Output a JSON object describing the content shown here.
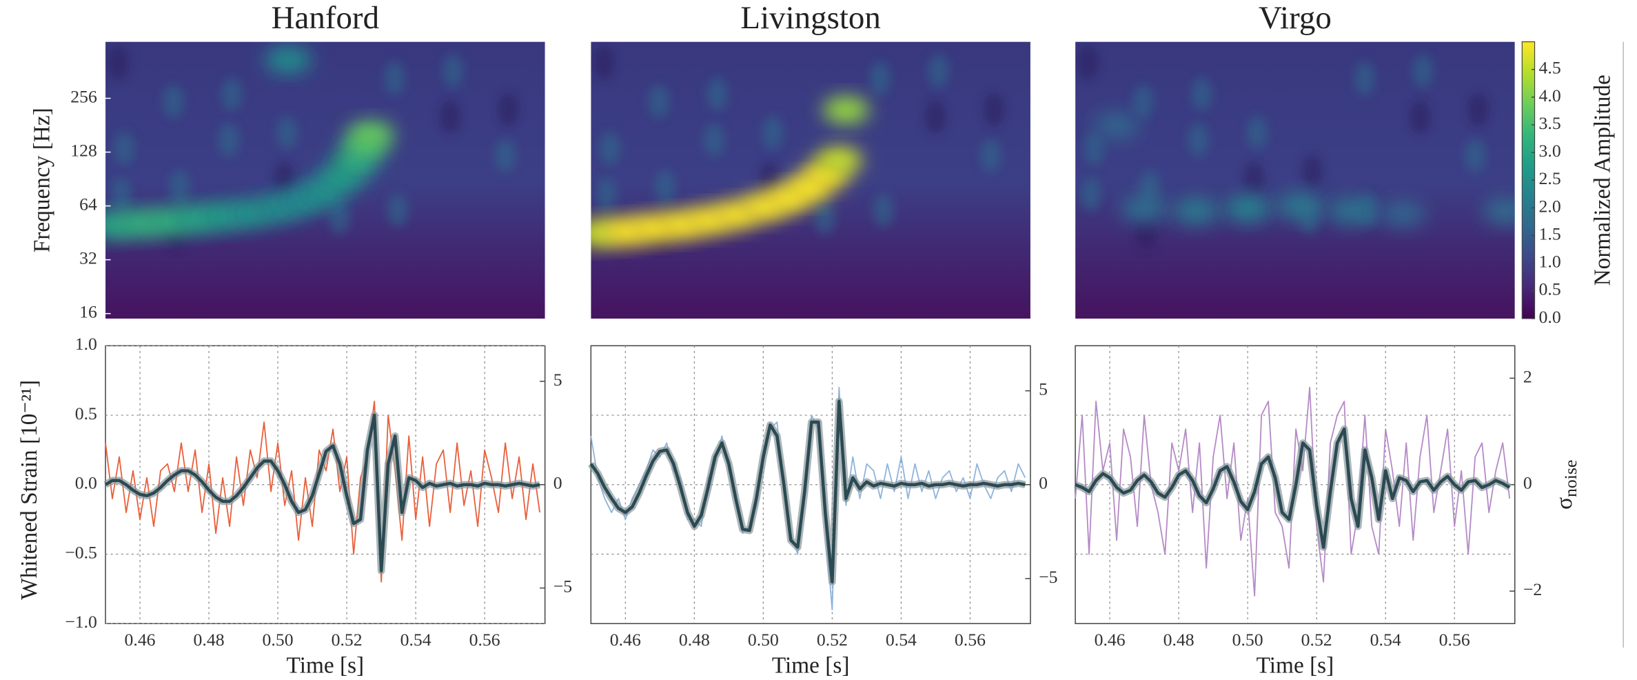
{
  "chart_data": [
    {
      "type": "heatmap",
      "title": "Hanford",
      "ylabel": "Frequency [Hz]",
      "log_y": true,
      "xlim": [
        0.45,
        0.5775
      ],
      "ylim": [
        15,
        530
      ],
      "yticks": [
        16,
        32,
        64,
        128,
        256
      ],
      "clim": [
        0,
        5
      ],
      "colormap": "viridis",
      "x": [
        0.452,
        0.46,
        0.468,
        0.476,
        0.484,
        0.492,
        0.5,
        0.507,
        0.513,
        0.518,
        0.522,
        0.525,
        0.527,
        0.503
      ],
      "y": [
        50,
        51,
        52,
        54,
        56,
        58,
        62,
        68,
        76,
        90,
        110,
        135,
        160,
        420
      ],
      "values": [
        3.0,
        3.2,
        3.2,
        3.0,
        2.8,
        2.6,
        2.5,
        2.4,
        2.5,
        2.7,
        3.0,
        3.4,
        3.8,
        2.4
      ]
    },
    {
      "type": "heatmap",
      "title": "Livingston",
      "log_y": true,
      "xlim": [
        0.45,
        0.5775
      ],
      "ylim": [
        15,
        530
      ],
      "clim": [
        0,
        5
      ],
      "colormap": "viridis",
      "x": [
        0.452,
        0.46,
        0.468,
        0.476,
        0.484,
        0.492,
        0.5,
        0.507,
        0.513,
        0.518,
        0.522,
        0.524
      ],
      "y": [
        45,
        46,
        48,
        50,
        53,
        57,
        63,
        70,
        80,
        95,
        115,
        220
      ],
      "values": [
        4.6,
        5.0,
        5.0,
        5.0,
        5.0,
        5.0,
        5.0,
        5.0,
        5.0,
        5.0,
        4.6,
        4.2
      ]
    },
    {
      "type": "heatmap",
      "title": "Virgo",
      "log_y": true,
      "xlim": [
        0.45,
        0.5775
      ],
      "ylim": [
        15,
        530
      ],
      "clim": [
        0,
        5
      ],
      "colormap": "viridis",
      "x": [
        0.47,
        0.485,
        0.5,
        0.515,
        0.53,
        0.545,
        0.575,
        0.462
      ],
      "y": [
        62,
        60,
        62,
        64,
        60,
        58,
        60,
        180
      ],
      "values": [
        1.8,
        2.0,
        2.2,
        2.0,
        1.9,
        1.6,
        1.7,
        1.6
      ],
      "colorbar": {
        "label": "Normalized Amplitude",
        "ticks": [
          {
            "value": 0,
            "label": "0.0"
          },
          0.5,
          {
            "value": 1,
            "label": "1.0"
          },
          1.5,
          {
            "value": 2,
            "label": "2.0"
          },
          2.5,
          {
            "value": 3,
            "label": "3.0"
          },
          3.5,
          {
            "value": 4,
            "label": "4.0"
          },
          4.5
        ]
      }
    },
    {
      "type": "line",
      "xlabel": "Time [s]",
      "ylabel": "Whitened Strain [10⁻²¹]",
      "grid": true,
      "show_ytick_labels": true,
      "xlim": [
        0.45,
        0.5775
      ],
      "ylim": [
        -1,
        1
      ],
      "y2lim": [
        -6.72,
        6.72
      ],
      "xticks": [
        0.46,
        0.48,
        {
          "value": 0.5,
          "label": "0.50"
        },
        0.52,
        0.54,
        0.56
      ],
      "yticks": [
        {
          "value": -1,
          "label": "−1.0"
        },
        {
          "value": -0.5,
          "label": "−0.5"
        },
        {
          "value": 0,
          "label": "0.0"
        },
        0.5,
        {
          "value": 1,
          "label": "1.0"
        }
      ],
      "y2ticks": [
        {
          "value": -5,
          "label": "−5"
        },
        0,
        5
      ],
      "x": [
        0.45,
        0.452,
        0.454,
        0.456,
        0.458,
        0.46,
        0.462,
        0.464,
        0.466,
        0.468,
        0.47,
        0.472,
        0.474,
        0.476,
        0.478,
        0.48,
        0.482,
        0.484,
        0.486,
        0.488,
        0.49,
        0.492,
        0.494,
        0.496,
        0.498,
        0.5,
        0.502,
        0.504,
        0.506,
        0.508,
        0.51,
        0.512,
        0.514,
        0.516,
        0.518,
        0.52,
        0.522,
        0.524,
        0.526,
        0.528,
        0.53,
        0.532,
        0.534,
        0.536,
        0.538,
        0.54,
        0.542,
        0.544,
        0.546,
        0.548,
        0.55,
        0.552,
        0.554,
        0.556,
        0.558,
        0.56,
        0.562,
        0.564,
        0.566,
        0.568,
        0.57,
        0.572,
        0.574,
        0.576
      ],
      "series": [
        {
          "color": "#e8603c",
          "values": [
            0.3,
            -0.1,
            0.2,
            -0.2,
            0.1,
            -0.25,
            0.05,
            -0.3,
            0.1,
            0.15,
            -0.05,
            0.3,
            -0.05,
            0.25,
            -0.2,
            0.15,
            -0.35,
            0.05,
            -0.3,
            0.2,
            -0.15,
            0.25,
            0.05,
            0.45,
            -0.05,
            0.3,
            -0.15,
            0.1,
            -0.4,
            0.05,
            -0.3,
            0.25,
            0.1,
            0.4,
            -0.05,
            0.2,
            -0.5,
            0.05,
            0.2,
            0.6,
            -0.7,
            0.5,
            0.1,
            -0.4,
            0.35,
            -0.25,
            0.2,
            -0.3,
            0.15,
            0.25,
            -0.2,
            0.3,
            -0.15,
            0.1,
            -0.3,
            0.25,
            0.05,
            -0.2,
            0.3,
            -0.1,
            0.2,
            -0.25,
            0.15,
            -0.2
          ]
        },
        {
          "color": "#2b4a52",
          "values": [
            0.0,
            0.03,
            0.03,
            0.0,
            -0.04,
            -0.07,
            -0.08,
            -0.06,
            -0.02,
            0.03,
            0.07,
            0.1,
            0.1,
            0.07,
            0.02,
            -0.04,
            -0.09,
            -0.12,
            -0.12,
            -0.08,
            -0.02,
            0.05,
            0.12,
            0.17,
            0.17,
            0.1,
            0.0,
            -0.12,
            -0.2,
            -0.18,
            -0.08,
            0.08,
            0.24,
            0.28,
            0.15,
            -0.08,
            -0.28,
            -0.25,
            0.25,
            0.5,
            -0.62,
            0.15,
            0.35,
            -0.2,
            0.05,
            0.03,
            -0.02,
            0.01,
            -0.01,
            0.0,
            0.01,
            -0.01,
            0.0,
            0.0,
            -0.01,
            0.01,
            0.0,
            0.0,
            -0.01,
            0.0,
            0.01,
            0.0,
            -0.01,
            0.0
          ]
        }
      ]
    },
    {
      "type": "line",
      "xlabel": "Time [s]",
      "grid": true,
      "show_ytick_labels": false,
      "xlim": [
        0.45,
        0.5775
      ],
      "ylim": [
        -1,
        1
      ],
      "y2lim": [
        -7.4,
        7.4
      ],
      "xticks": [
        0.46,
        0.48,
        {
          "value": 0.5,
          "label": "0.50"
        },
        0.52,
        0.54,
        0.56
      ],
      "yticks": [
        -0.5,
        0,
        0.5
      ],
      "y2ticks": [
        {
          "value": -5,
          "label": "−5"
        },
        0,
        5
      ],
      "x": [
        0.45,
        0.452,
        0.454,
        0.456,
        0.458,
        0.46,
        0.462,
        0.464,
        0.466,
        0.468,
        0.47,
        0.472,
        0.474,
        0.476,
        0.478,
        0.48,
        0.482,
        0.484,
        0.486,
        0.488,
        0.49,
        0.492,
        0.494,
        0.496,
        0.498,
        0.5,
        0.502,
        0.504,
        0.506,
        0.508,
        0.51,
        0.512,
        0.514,
        0.516,
        0.518,
        0.52,
        0.522,
        0.524,
        0.526,
        0.528,
        0.53,
        0.532,
        0.534,
        0.536,
        0.538,
        0.54,
        0.542,
        0.544,
        0.546,
        0.548,
        0.55,
        0.552,
        0.554,
        0.556,
        0.558,
        0.56,
        0.562,
        0.564,
        0.566,
        0.568,
        0.57,
        0.572,
        0.574,
        0.576
      ],
      "series": [
        {
          "color": "#8fb3dc",
          "values": [
            0.35,
            0.05,
            -0.1,
            -0.2,
            -0.1,
            -0.25,
            -0.1,
            0.0,
            0.1,
            0.25,
            0.2,
            0.3,
            0.1,
            0.05,
            -0.25,
            -0.25,
            -0.3,
            0.05,
            0.15,
            0.35,
            0.1,
            -0.05,
            -0.35,
            -0.3,
            -0.15,
            0.25,
            0.4,
            0.45,
            -0.05,
            -0.35,
            -0.5,
            0.0,
            0.5,
            0.4,
            -0.3,
            -0.9,
            0.7,
            -0.15,
            0.2,
            -0.1,
            0.15,
            0.1,
            -0.1,
            0.15,
            -0.05,
            0.2,
            -0.1,
            0.15,
            -0.05,
            0.1,
            -0.1,
            0.05,
            0.1,
            -0.05,
            0.05,
            -0.1,
            0.15,
            0.0,
            -0.1,
            0.05,
            0.1,
            -0.05,
            0.15,
            0.05
          ]
        },
        {
          "color": "#2b4a52",
          "values": [
            0.15,
            0.08,
            -0.02,
            -0.1,
            -0.17,
            -0.2,
            -0.16,
            -0.06,
            0.06,
            0.17,
            0.24,
            0.25,
            0.15,
            -0.02,
            -0.2,
            -0.3,
            -0.22,
            -0.02,
            0.2,
            0.3,
            0.15,
            -0.1,
            -0.32,
            -0.33,
            -0.1,
            0.2,
            0.43,
            0.35,
            0.0,
            -0.4,
            -0.45,
            -0.05,
            0.45,
            0.45,
            -0.2,
            -0.7,
            0.6,
            -0.1,
            0.05,
            -0.03,
            0.02,
            -0.01,
            0.01,
            0.0,
            -0.01,
            0.01,
            0.0,
            0.0,
            0.01,
            -0.01,
            0.0,
            0.0,
            0.01,
            0.0,
            -0.01,
            0.0,
            0.0,
            0.01,
            0.0,
            -0.01,
            0.0,
            0.0,
            0.01,
            0.0
          ]
        }
      ]
    },
    {
      "type": "line",
      "xlabel": "Time [s]",
      "grid": true,
      "show_ytick_labels": false,
      "y2label": {
        "symbol": "σ",
        "subscript": "noise"
      },
      "xlim": [
        0.45,
        0.5775
      ],
      "ylim": [
        -1,
        1
      ],
      "y2lim": [
        -2.61,
        2.61
      ],
      "xticks": [
        0.46,
        0.48,
        {
          "value": 0.5,
          "label": "0.50"
        },
        0.52,
        0.54,
        0.56
      ],
      "yticks": [
        -0.5,
        0,
        0.5
      ],
      "y2ticks": [
        {
          "value": -2,
          "label": "−2"
        },
        0,
        2
      ],
      "x": [
        0.45,
        0.452,
        0.454,
        0.456,
        0.458,
        0.46,
        0.462,
        0.464,
        0.466,
        0.468,
        0.47,
        0.472,
        0.474,
        0.476,
        0.478,
        0.48,
        0.482,
        0.484,
        0.486,
        0.488,
        0.49,
        0.492,
        0.494,
        0.496,
        0.498,
        0.5,
        0.502,
        0.504,
        0.506,
        0.508,
        0.51,
        0.512,
        0.514,
        0.516,
        0.518,
        0.52,
        0.522,
        0.524,
        0.526,
        0.528,
        0.53,
        0.532,
        0.534,
        0.536,
        0.538,
        0.54,
        0.542,
        0.544,
        0.546,
        0.548,
        0.55,
        0.552,
        0.554,
        0.556,
        0.558,
        0.56,
        0.562,
        0.564,
        0.566,
        0.568,
        0.57,
        0.572,
        0.574,
        0.576
      ],
      "series": [
        {
          "color": "#b58ac6",
          "values": [
            -0.1,
            0.5,
            -0.5,
            0.6,
            0.1,
            0.3,
            -0.4,
            0.4,
            0.2,
            -0.3,
            0.5,
            0.0,
            -0.2,
            -0.5,
            0.3,
            0.1,
            0.4,
            -0.2,
            0.3,
            -0.6,
            0.2,
            0.5,
            -0.1,
            0.3,
            -0.4,
            -0.1,
            -0.8,
            0.5,
            0.6,
            -0.2,
            -0.3,
            -0.6,
            0.4,
            0.1,
            0.7,
            -0.3,
            -0.7,
            0.3,
            0.5,
            0.6,
            -0.5,
            -0.2,
            0.5,
            -0.3,
            -0.5,
            0.4,
            0.1,
            -0.3,
            0.3,
            -0.4,
            0.2,
            0.5,
            -0.2,
            0.1,
            0.4,
            -0.3,
            0.1,
            -0.5,
            0.2,
            0.3,
            -0.2,
            0.1,
            0.3,
            -0.1
          ]
        },
        {
          "color": "#2b4a52",
          "values": [
            0.0,
            -0.02,
            -0.05,
            0.03,
            0.08,
            0.05,
            -0.02,
            -0.06,
            -0.04,
            0.03,
            0.07,
            0.02,
            -0.06,
            -0.09,
            -0.02,
            0.07,
            0.1,
            0.03,
            -0.08,
            -0.13,
            -0.03,
            0.1,
            0.13,
            0.02,
            -0.12,
            -0.18,
            -0.05,
            0.15,
            0.2,
            0.05,
            -0.2,
            -0.25,
            0.0,
            0.3,
            0.25,
            -0.15,
            -0.45,
            -0.05,
            0.3,
            0.4,
            -0.1,
            -0.3,
            0.25,
            0.05,
            -0.25,
            0.1,
            -0.1,
            0.05,
            0.03,
            -0.05,
            0.02,
            0.03,
            -0.04,
            0.02,
            0.06,
            0.0,
            -0.04,
            0.02,
            0.03,
            -0.02,
            0.0,
            0.03,
            0.01,
            -0.02
          ]
        }
      ]
    }
  ]
}
